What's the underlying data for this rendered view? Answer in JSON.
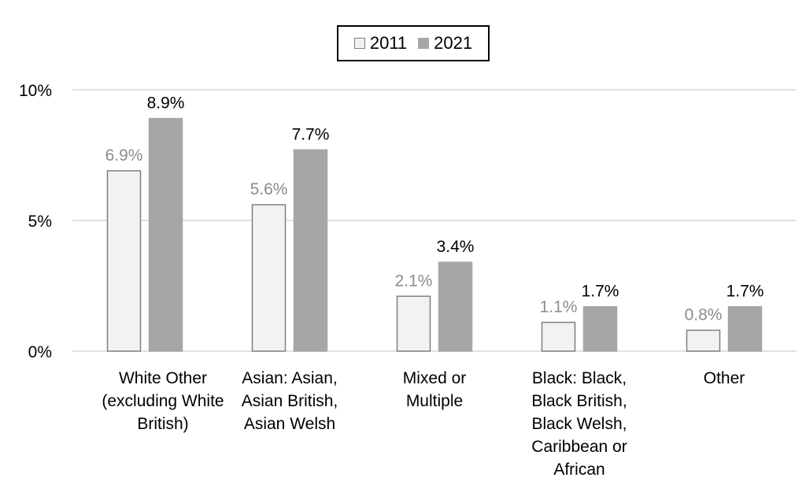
{
  "chart_data": {
    "type": "bar",
    "categories": [
      "White Other (excluding White British)",
      "Asian: Asian, Asian British, Asian Welsh",
      "Mixed or Multiple",
      "Black: Black, Black British, Black Welsh, Caribbean or African",
      "Other"
    ],
    "category_lines": [
      [
        "White Other",
        "(excluding White",
        "British)"
      ],
      [
        "Asian: Asian,",
        "Asian British,",
        "Asian Welsh"
      ],
      [
        "Mixed or",
        "Multiple"
      ],
      [
        "Black: Black,",
        "Black British,",
        "Black Welsh,",
        "Caribbean or",
        "African"
      ],
      [
        "Other"
      ]
    ],
    "series": [
      {
        "name": "2011",
        "values": [
          6.9,
          5.6,
          2.1,
          1.1,
          0.8
        ],
        "labels": [
          "6.9%",
          "5.6%",
          "2.1%",
          "1.1%",
          "0.8%"
        ],
        "fill": "#f2f2f2",
        "stroke": "#7f7f7f",
        "label_color": "#8c8c8c"
      },
      {
        "name": "2021",
        "values": [
          8.9,
          7.7,
          3.4,
          1.7,
          1.7
        ],
        "labels": [
          "8.9%",
          "7.7%",
          "3.4%",
          "1.7%",
          "1.7%"
        ],
        "fill": "#a6a6a6",
        "stroke": "#a6a6a6",
        "label_color": "#000000"
      }
    ],
    "ylim": [
      0,
      10
    ],
    "yticks": [
      {
        "value": 0,
        "label": "0%"
      },
      {
        "value": 5,
        "label": "5%"
      },
      {
        "value": 10,
        "label": "10%"
      }
    ],
    "grid": true,
    "legend_position": "top-center"
  }
}
